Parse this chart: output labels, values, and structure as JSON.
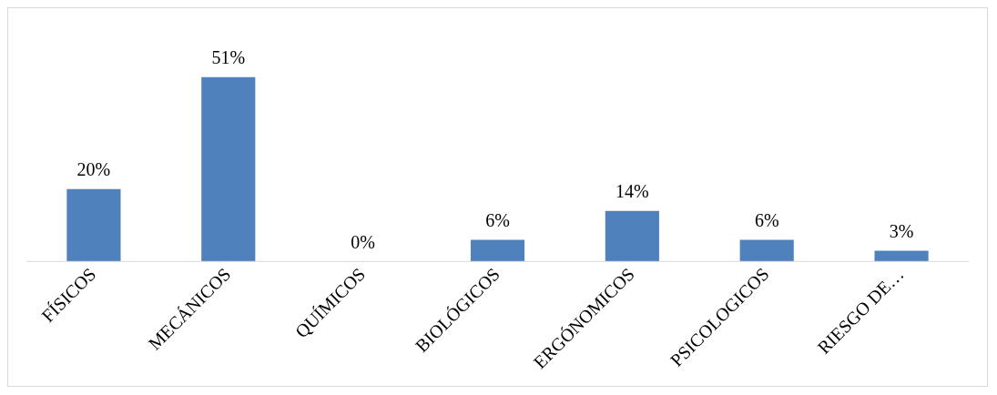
{
  "chart_data": {
    "type": "bar",
    "categories": [
      "FÍSICOS",
      "MECÁNICOS",
      "QUÍMICOS",
      "BIOLÓGICOS",
      "ERGÓNOMICOS",
      "PSICOLOGICOS",
      "RIESGO DE…"
    ],
    "values": [
      20,
      51,
      0,
      6,
      14,
      6,
      3
    ],
    "value_labels": [
      "20%",
      "51%",
      "0%",
      "6%",
      "14%",
      "6%",
      "3%"
    ],
    "color": "#4f81bd",
    "grid": false,
    "legend": false
  }
}
